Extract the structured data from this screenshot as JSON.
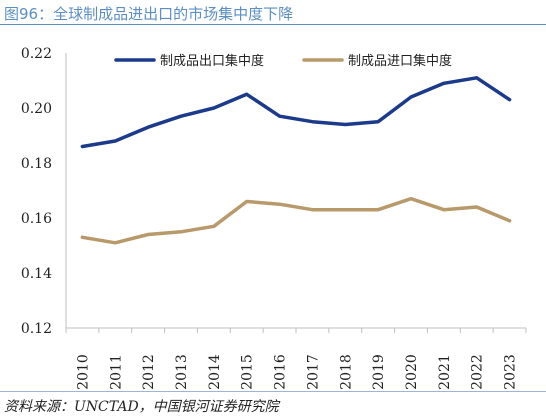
{
  "figure": {
    "title": "图96：全球制成品进出口的市场集中度下降",
    "source": "资料来源：UNCTAD，中国银河证券研究院"
  },
  "colors": {
    "accent": "#5b8fc4",
    "export": "#1b3a8c",
    "import": "#b89a6a"
  },
  "chart_data": {
    "type": "line",
    "x": [
      "2010",
      "2011",
      "2012",
      "2013",
      "2014",
      "2015",
      "2016",
      "2017",
      "2018",
      "2019",
      "2020",
      "2021",
      "2022",
      "2023"
    ],
    "series": [
      {
        "name": "制成品出口集中度",
        "color": "#1b3a8c",
        "values": [
          0.186,
          0.188,
          0.193,
          0.197,
          0.2,
          0.205,
          0.197,
          0.195,
          0.194,
          0.195,
          0.204,
          0.209,
          0.211,
          0.203
        ]
      },
      {
        "name": "制成品进口集中度",
        "color": "#b89a6a",
        "values": [
          0.153,
          0.151,
          0.154,
          0.155,
          0.157,
          0.166,
          0.165,
          0.163,
          0.163,
          0.163,
          0.167,
          0.163,
          0.164,
          0.159
        ]
      }
    ],
    "ylim": [
      0.12,
      0.22
    ],
    "yticks": [
      "0.12",
      "0.14",
      "0.16",
      "0.18",
      "0.20",
      "0.22"
    ],
    "legend": "top-center",
    "grid": false
  }
}
